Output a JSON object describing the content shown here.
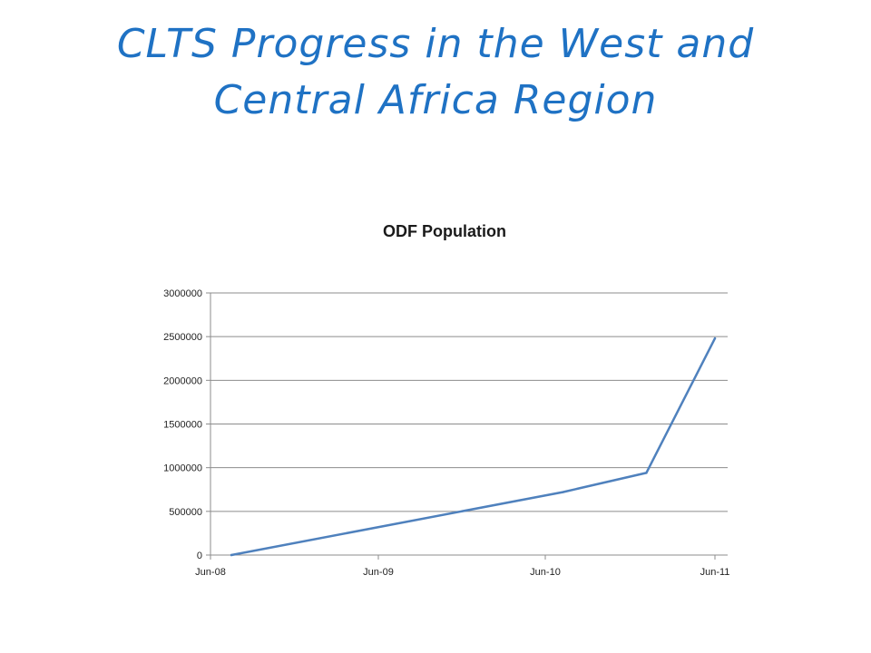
{
  "slide": {
    "title_line1": "CLTS Progress in the West and",
    "title_line2": "Central Africa Region"
  },
  "colors": {
    "title": "#1f72c4",
    "series_line": "#4f81bd",
    "gridline": "#8c8c8c"
  },
  "chart_data": {
    "type": "line",
    "title": "ODF Population",
    "xlabel": "",
    "ylabel": "",
    "x_ticks": [
      "Jun-08",
      "Jun-09",
      "Jun-10",
      "Jun-11"
    ],
    "y_ticks": [
      "0",
      "500000",
      "1000000",
      "1500000",
      "2000000",
      "2500000",
      "3000000"
    ],
    "ylim": [
      0,
      3000000
    ],
    "grid": true,
    "legend": "none",
    "series": [
      {
        "points": [
          {
            "x": "2008-07",
            "y": 0
          },
          {
            "x": "2010-07",
            "y": 720000
          },
          {
            "x": "2011-01",
            "y": 940000
          },
          {
            "x": "2011-06",
            "y": 2480000
          }
        ]
      }
    ]
  }
}
